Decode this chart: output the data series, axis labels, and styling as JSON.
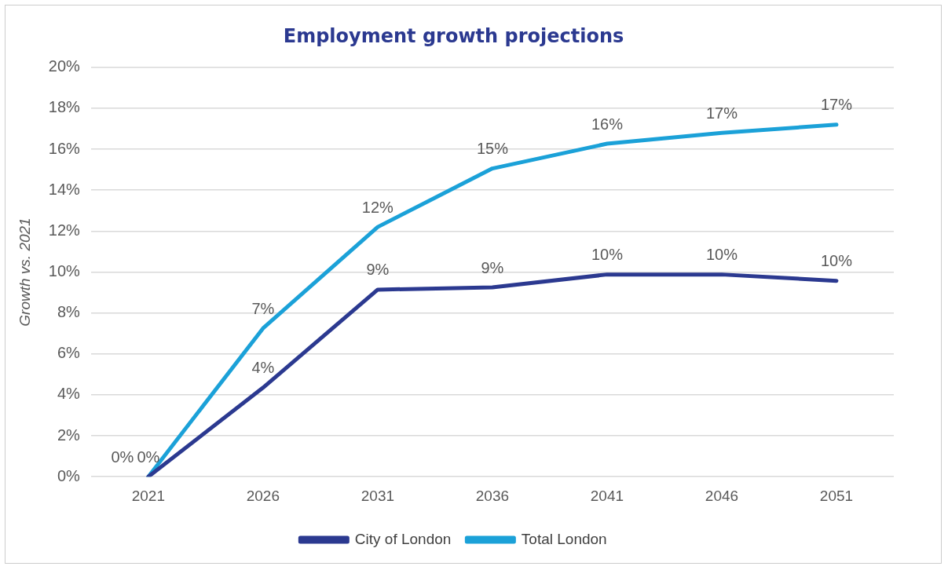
{
  "chart_data": {
    "type": "line",
    "title": "Employment growth projections",
    "ylabel": "Growth vs. 2021",
    "x": [
      "2021",
      "2026",
      "2031",
      "2036",
      "2041",
      "2046",
      "2051"
    ],
    "series": [
      {
        "name": "City of London",
        "color": "#2b3990",
        "values": [
          0,
          4.35,
          9.14,
          9.25,
          9.88,
          9.88,
          9.57
        ],
        "value_labels": [
          "0%",
          "4%",
          "9%",
          "9%",
          "10%",
          "10%",
          "10%"
        ]
      },
      {
        "name": "Total London",
        "color": "#1ba1d8",
        "values": [
          0,
          7.25,
          12.2,
          15.06,
          16.27,
          16.8,
          17.2
        ],
        "value_labels": [
          "0%",
          "7%",
          "12%",
          "15%",
          "16%",
          "17%",
          "17%"
        ]
      }
    ],
    "ylim": [
      0,
      20
    ],
    "yticks": [
      {
        "value": 0,
        "label": "0%"
      },
      {
        "value": 2,
        "label": "2%"
      },
      {
        "value": 4,
        "label": "4%"
      },
      {
        "value": 6,
        "label": "6%"
      },
      {
        "value": 8,
        "label": "8%"
      },
      {
        "value": 10,
        "label": "10%"
      },
      {
        "value": 12,
        "label": "12%"
      },
      {
        "value": 14,
        "label": "14%"
      },
      {
        "value": 16,
        "label": "16%"
      },
      {
        "value": 18,
        "label": "18%"
      },
      {
        "value": 20,
        "label": "20%"
      }
    ],
    "grid": "y",
    "legend": "bottom",
    "marker": "none",
    "line_style": "solid"
  }
}
